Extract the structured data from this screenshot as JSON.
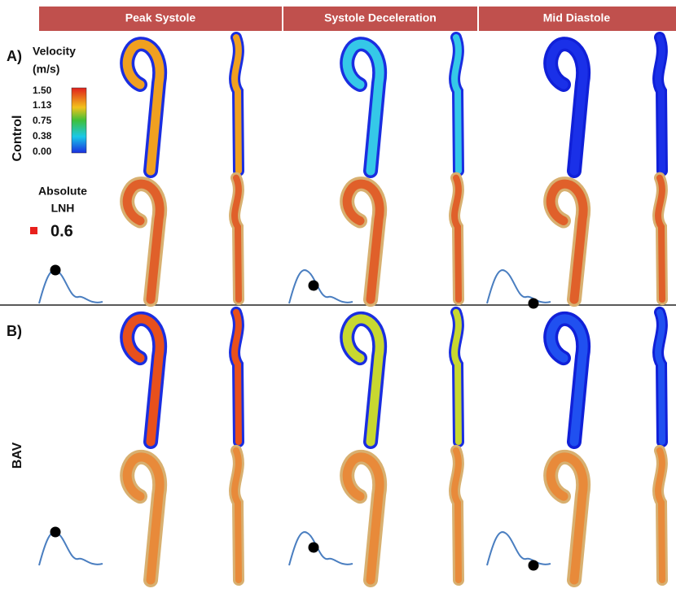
{
  "header": {
    "columns": [
      "Peak Systole",
      "Systole Deceleration",
      "Mid Diastole"
    ]
  },
  "groups": [
    {
      "letter": "A)",
      "label": "Control"
    },
    {
      "letter": "B)",
      "label": "BAV"
    }
  ],
  "velocity_legend": {
    "title": [
      "Velocity",
      "(m/s)"
    ],
    "ticks": [
      "1.50",
      "1.13",
      "0.75",
      "0.38",
      "0.00"
    ]
  },
  "lnh_legend": {
    "title": [
      "Absolute",
      "LNH"
    ],
    "threshold": "0.6"
  }
}
